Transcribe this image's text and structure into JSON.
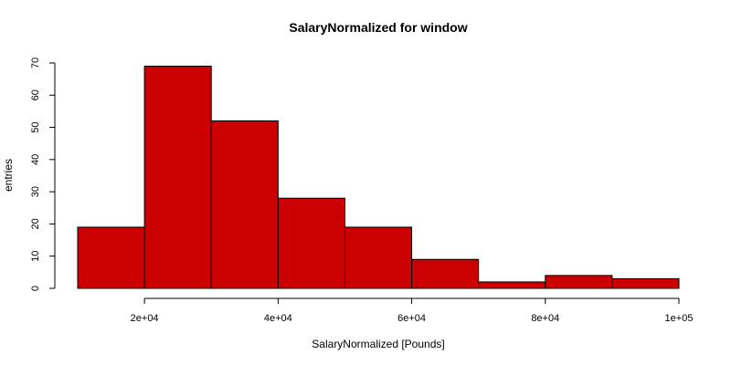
{
  "chart_data": {
    "type": "bar",
    "title": "SalaryNormalized for window",
    "xlabel": "SalaryNormalized [Pounds]",
    "ylabel": "entries",
    "bin_edges": [
      10000,
      20000,
      30000,
      40000,
      50000,
      60000,
      70000,
      80000,
      90000,
      100000
    ],
    "values": [
      19,
      69,
      52,
      28,
      19,
      9,
      2,
      4,
      3
    ],
    "xlim": [
      10000,
      100000
    ],
    "ylim": [
      0,
      70
    ],
    "x_ticks": [
      {
        "value": 20000,
        "label": "2e+04"
      },
      {
        "value": 40000,
        "label": "4e+04"
      },
      {
        "value": 60000,
        "label": "6e+04"
      },
      {
        "value": 80000,
        "label": "8e+04"
      },
      {
        "value": 100000,
        "label": "1e+05"
      }
    ],
    "y_ticks": [
      {
        "value": 0,
        "label": "0"
      },
      {
        "value": 10,
        "label": "10"
      },
      {
        "value": 20,
        "label": "20"
      },
      {
        "value": 30,
        "label": "30"
      },
      {
        "value": 40,
        "label": "40"
      },
      {
        "value": 50,
        "label": "50"
      },
      {
        "value": 60,
        "label": "60"
      },
      {
        "value": 70,
        "label": "70"
      }
    ],
    "bar_color": "#CC0000",
    "grid": false,
    "legend": "none"
  }
}
